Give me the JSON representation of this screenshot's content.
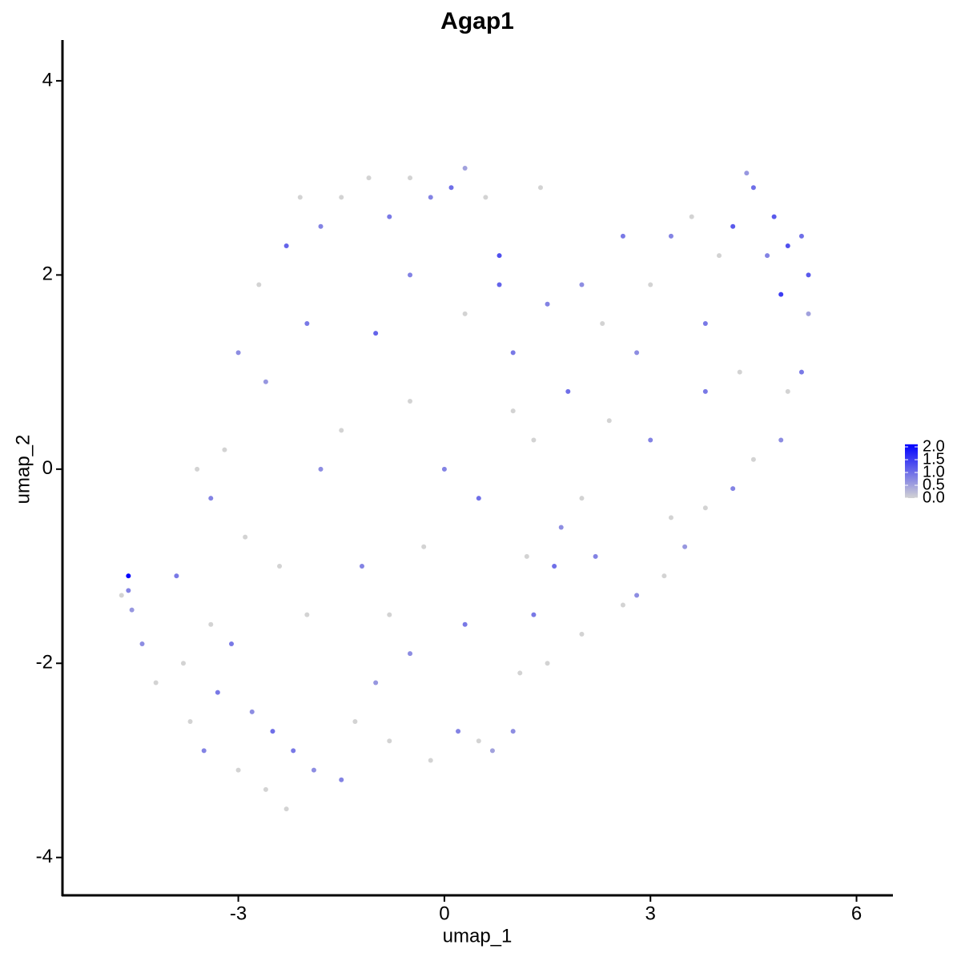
{
  "chart_data": {
    "type": "scatter",
    "title": "Agap1",
    "x_label": "umap_1",
    "y_label": "umap_2",
    "xlim": [
      -5.56,
      6.53
    ],
    "ylim": [
      -4.39,
      4.42
    ],
    "xticks": [
      -3,
      0,
      3,
      6
    ],
    "yticks": [
      -4,
      -2,
      0,
      2,
      4
    ],
    "color_low": "#d3d3d3",
    "color_high": "#0000ff",
    "color_lim": [
      0,
      2.1
    ],
    "color_ticks": [
      {
        "value": 0,
        "label": "0.0"
      },
      {
        "value": 0.5,
        "label": "0.5"
      },
      {
        "value": 1,
        "label": "1.0"
      },
      {
        "value": 1.5,
        "label": "1.5"
      },
      {
        "value": 2,
        "label": "2.0"
      }
    ],
    "x": [
      -4.6,
      -4.7,
      -4.6,
      -4.55,
      -4.4,
      -4.2,
      -3.9,
      -3.8,
      -3.7,
      -3.5,
      -3.4,
      -3.3,
      -3.0,
      -3.1,
      -2.9,
      -2.8,
      -2.6,
      -2.5,
      -2.3,
      -2.2,
      -2.0,
      -1.9,
      -1.5,
      -1.3,
      -1.0,
      -0.8,
      -0.5,
      -0.2,
      0.2,
      0.5,
      0.7,
      1.0,
      1.1,
      1.3,
      1.5,
      1.6,
      2.0,
      2.2,
      2.6,
      2.8,
      3.2,
      3.5,
      3.8,
      4.2,
      4.5,
      4.9,
      5.0,
      5.2,
      5.3,
      5.3,
      5.2,
      5.0,
      4.9,
      4.8,
      4.7,
      4.5,
      4.4,
      4.2,
      4.0,
      3.8,
      3.6,
      3.3,
      3.0,
      2.8,
      2.6,
      2.3,
      2.0,
      1.8,
      1.5,
      1.3,
      1.0,
      0.8,
      0.8,
      1.4,
      0.6,
      0.3,
      0.1,
      -0.2,
      -0.5,
      -0.8,
      -1.1,
      -1.5,
      -1.8,
      -2.1,
      -2.3,
      -2.7,
      -3.0,
      -3.2,
      -3.4,
      -3.6,
      -2.6,
      -2.0,
      -1.5,
      -1.0,
      -0.5,
      0.0,
      -0.3,
      0.5,
      1.0,
      1.7,
      2.4,
      3.0,
      3.3,
      3.8,
      4.3,
      -1.2,
      -2.4,
      -0.8,
      0.3,
      2.0,
      -1.8,
      -0.5,
      0.3,
      1.2
    ],
    "y": [
      -1.1,
      -1.3,
      -1.25,
      -1.45,
      -1.8,
      -2.2,
      -1.1,
      -2.0,
      -2.6,
      -2.9,
      -1.6,
      -2.3,
      -3.1,
      -1.8,
      -0.7,
      -2.5,
      -3.3,
      -2.7,
      -3.5,
      -2.9,
      -1.5,
      -3.1,
      -3.2,
      -2.6,
      -2.2,
      -2.8,
      -1.9,
      -3.0,
      -2.7,
      -2.8,
      -2.9,
      -2.7,
      -2.1,
      -1.5,
      -2.0,
      -1.0,
      -1.7,
      -0.9,
      -1.4,
      -1.3,
      -1.1,
      -0.8,
      -0.4,
      -0.2,
      0.1,
      0.3,
      0.8,
      1.0,
      1.6,
      2.0,
      2.4,
      2.3,
      1.8,
      2.6,
      2.2,
      2.9,
      3.05,
      2.5,
      2.2,
      1.5,
      2.6,
      2.4,
      1.9,
      1.2,
      2.4,
      1.5,
      1.9,
      0.8,
      1.7,
      0.3,
      1.2,
      1.9,
      2.2,
      2.9,
      2.8,
      3.1,
      2.9,
      2.8,
      3.0,
      2.6,
      3.0,
      2.8,
      2.5,
      2.8,
      2.3,
      1.9,
      1.2,
      0.2,
      -0.3,
      0.0,
      0.9,
      1.5,
      0.4,
      1.4,
      0.7,
      0.0,
      -0.8,
      -0.3,
      0.6,
      -0.6,
      0.5,
      0.3,
      -0.5,
      0.8,
      1.0,
      -1.0,
      -1.0,
      -1.5,
      -1.6,
      -0.3,
      0.0,
      2.0,
      1.6,
      -0.9
    ],
    "expression": [
      2.1,
      0,
      0.8,
      0.6,
      0.7,
      0,
      0.9,
      0,
      0,
      0.8,
      0,
      0.9,
      0,
      0.9,
      0,
      0.7,
      0,
      1.0,
      0,
      0.9,
      0,
      0.7,
      0.8,
      0,
      0.6,
      0,
      0.7,
      0,
      0.8,
      0,
      0.5,
      0.7,
      0,
      0.9,
      0,
      1.0,
      0,
      0.8,
      0,
      0.7,
      0,
      0.6,
      0,
      0.8,
      0,
      0.7,
      0,
      0.9,
      0.5,
      1.2,
      1.0,
      1.3,
      1.5,
      1.2,
      0.8,
      1.0,
      0.6,
      1.2,
      0,
      0.9,
      0,
      0.8,
      0,
      0.7,
      0.9,
      0,
      0.7,
      1.0,
      0.8,
      0,
      0.9,
      1.1,
      1.3,
      0,
      0,
      0.5,
      1.0,
      0.8,
      0,
      0.9,
      0,
      0,
      0.8,
      0,
      1.1,
      0,
      0.7,
      0,
      0.8,
      0,
      0.6,
      0.9,
      0,
      1.1,
      0,
      0.8,
      0,
      1.0,
      0,
      0.7,
      0,
      0.8,
      0,
      0.9,
      0,
      0.8,
      0,
      0,
      0.9,
      0,
      0.7,
      0.8,
      0,
      0
    ]
  }
}
